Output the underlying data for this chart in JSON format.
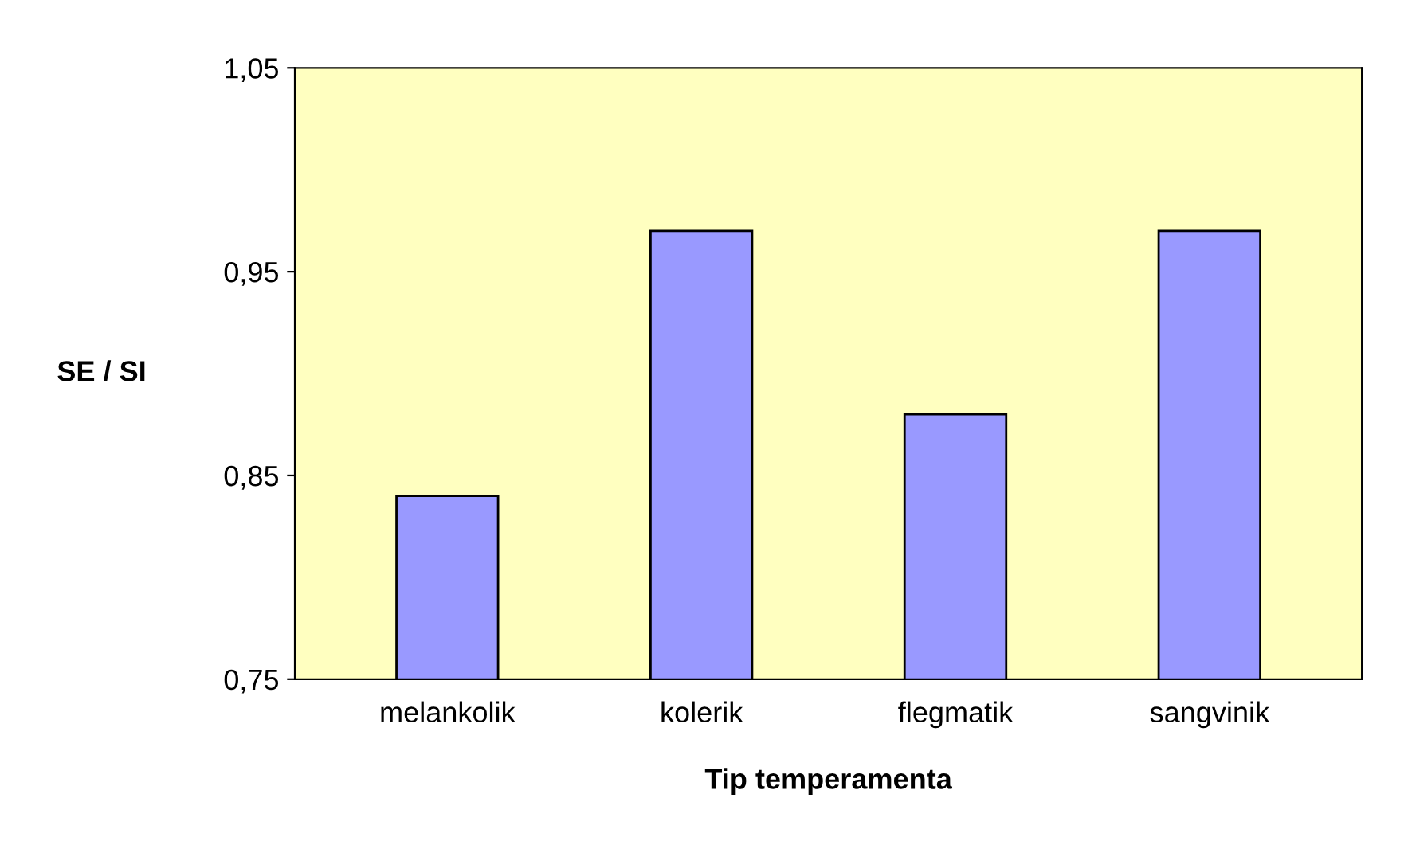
{
  "chart_data": {
    "type": "bar",
    "xlabel": "Tip temperamenta",
    "ylabel": "SE / SI",
    "categories": [
      "melankolik",
      "kolerik",
      "flegmatik",
      "sangvinik"
    ],
    "values": [
      0.84,
      0.97,
      0.88,
      0.97
    ],
    "color": "#9999ff",
    "ylim": [
      0.75,
      1.05
    ],
    "yticks": [
      {
        "value": 0.75,
        "label": "0,75"
      },
      {
        "value": 0.85,
        "label": "0,85"
      },
      {
        "value": 0.95,
        "label": "0,95"
      },
      {
        "value": 1.05,
        "label": "1,05"
      }
    ],
    "grid": false
  }
}
